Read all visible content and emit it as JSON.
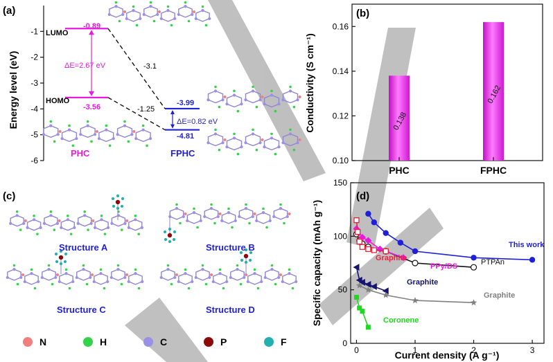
{
  "panel_labels": {
    "a": "(a)",
    "b": "(b)",
    "c": "(c)",
    "d": "(d)"
  },
  "colors": {
    "magenta": "#e81ae0",
    "blue": "#1f1fd8",
    "black": "#111111",
    "watermark": "#8c8c8c"
  },
  "chart_data": [
    {
      "panel": "a",
      "type": "energy-diagram",
      "ylabel": "Energy level (eV)",
      "ylim": [
        -6,
        0
      ],
      "yticks": [
        -1,
        -2,
        -3,
        -4,
        -5,
        -6
      ],
      "levels": {
        "PHC_LUMO": -0.89,
        "PHC_HOMO": -3.56,
        "FPHC_LUMO": -3.99,
        "FPHC_HOMO": -4.81
      },
      "labels": {
        "lumo": "LUMO",
        "homo": "HOMO",
        "phc_lumo_val": "-0.89",
        "phc_homo_val": "-3.56",
        "fphc_lumo_val": "-3.99",
        "fphc_homo_val": "-4.81",
        "phc_gap": "ΔE=2.67 eV",
        "fphc_gap": "ΔE=0.82 eV",
        "shift_lumo": "-3.1",
        "shift_homo": "-1.25",
        "phc": "PHC",
        "fphc": "FPHC"
      }
    },
    {
      "panel": "b",
      "type": "bar",
      "categories": [
        "PHC",
        "FPHC"
      ],
      "values": [
        0.138,
        0.162
      ],
      "value_labels": [
        "0.138",
        "0.162"
      ],
      "ylabel": "Conductivity (S cm⁻¹)",
      "ylim": [
        0.1,
        0.17
      ],
      "yticks": [
        0.1,
        0.12,
        0.14,
        0.16
      ],
      "ytick_labels": [
        "0.10",
        "0.12",
        "0.14",
        "0.16"
      ]
    },
    {
      "panel": "d",
      "type": "line",
      "xlabel": "Current density (A g⁻¹)",
      "ylabel": "Specific capacity (mAh g⁻¹)",
      "xlim": [
        -0.1,
        3.2
      ],
      "ylim": [
        0,
        150
      ],
      "xticks": [
        0,
        1,
        2,
        3
      ],
      "yticks": [
        0,
        50,
        100,
        150
      ],
      "series": [
        {
          "name": "This work",
          "color": "#1f1fd8",
          "marker": "circle-filled",
          "x": [
            0.2,
            0.3,
            0.5,
            0.75,
            1.0,
            2.0,
            3.0
          ],
          "y": [
            121,
            113,
            103,
            94,
            86,
            80,
            78
          ]
        },
        {
          "name": "PTPAn",
          "color": "#111111",
          "marker": "circle-open",
          "x": [
            0.0,
            0.05,
            0.1,
            0.2,
            0.5,
            1.0,
            2.0
          ],
          "y": [
            102,
            96,
            93,
            90,
            86,
            75,
            71
          ]
        },
        {
          "name": "PPy/DS",
          "color": "#e81ae0",
          "marker": "diamond",
          "x": [
            0.0,
            0.1,
            0.2,
            0.4,
            0.8
          ],
          "y": [
            107,
            99,
            96,
            88,
            80
          ]
        },
        {
          "name": "Graphite",
          "color": "#e8243c",
          "marker": "square-open",
          "x": [
            0.0,
            0.02,
            0.05,
            0.1,
            0.2,
            0.3,
            0.5
          ],
          "y": [
            115,
            104,
            95,
            90,
            88,
            87,
            86
          ]
        },
        {
          "name": "Graphite",
          "color": "#14146e",
          "marker": "triangle-left",
          "x": [
            0.0,
            0.05,
            0.1,
            0.2,
            0.3,
            0.5
          ],
          "y": [
            71,
            59,
            57,
            55,
            53,
            49
          ]
        },
        {
          "name": "Graphite",
          "color": "#808080",
          "marker": "star",
          "x": [
            0.05,
            0.2,
            0.5,
            1.0,
            2.0
          ],
          "y": [
            54,
            50,
            45,
            40,
            38
          ]
        },
        {
          "name": "Coronene",
          "color": "#1fd81f",
          "marker": "square-filled",
          "x": [
            0.0,
            0.05,
            0.1,
            0.2
          ],
          "y": [
            43,
            33,
            30,
            15
          ]
        }
      ]
    }
  ],
  "panel_c": {
    "structures": [
      "Structure A",
      "Structure B",
      "Structure C",
      "Structure D"
    ],
    "legend": [
      {
        "symbol": "N",
        "color": "#f08080"
      },
      {
        "symbol": "H",
        "color": "#33d24a"
      },
      {
        "symbol": "C",
        "color": "#9b8fe6"
      },
      {
        "symbol": "P",
        "color": "#8b0a0a"
      },
      {
        "symbol": "F",
        "color": "#25b0b0"
      }
    ]
  }
}
